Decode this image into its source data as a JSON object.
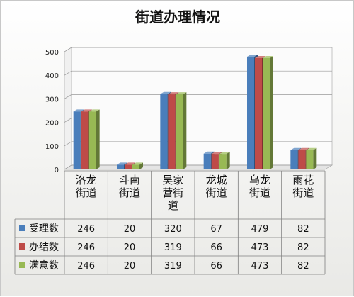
{
  "chart_data": {
    "type": "bar",
    "title": "街道办理情况",
    "categories": [
      "洛龙\n街道",
      "斗南\n街道",
      "吴家\n营街\n道",
      "龙城\n街道",
      "乌龙\n街道",
      "雨花\n街道"
    ],
    "series": [
      {
        "name": "受理数",
        "color": "#4a7ebb",
        "values": [
          246,
          20,
          320,
          67,
          479,
          82
        ]
      },
      {
        "name": "办结数",
        "color": "#be4b48",
        "values": [
          246,
          20,
          319,
          66,
          473,
          82
        ]
      },
      {
        "name": "满意数",
        "color": "#98b954",
        "values": [
          246,
          20,
          319,
          66,
          473,
          82
        ]
      }
    ],
    "ylim": [
      0,
      500
    ],
    "yticks": [
      "0",
      "100",
      "200",
      "300",
      "400",
      "500"
    ],
    "grid": true,
    "legend": "data-table-left"
  }
}
